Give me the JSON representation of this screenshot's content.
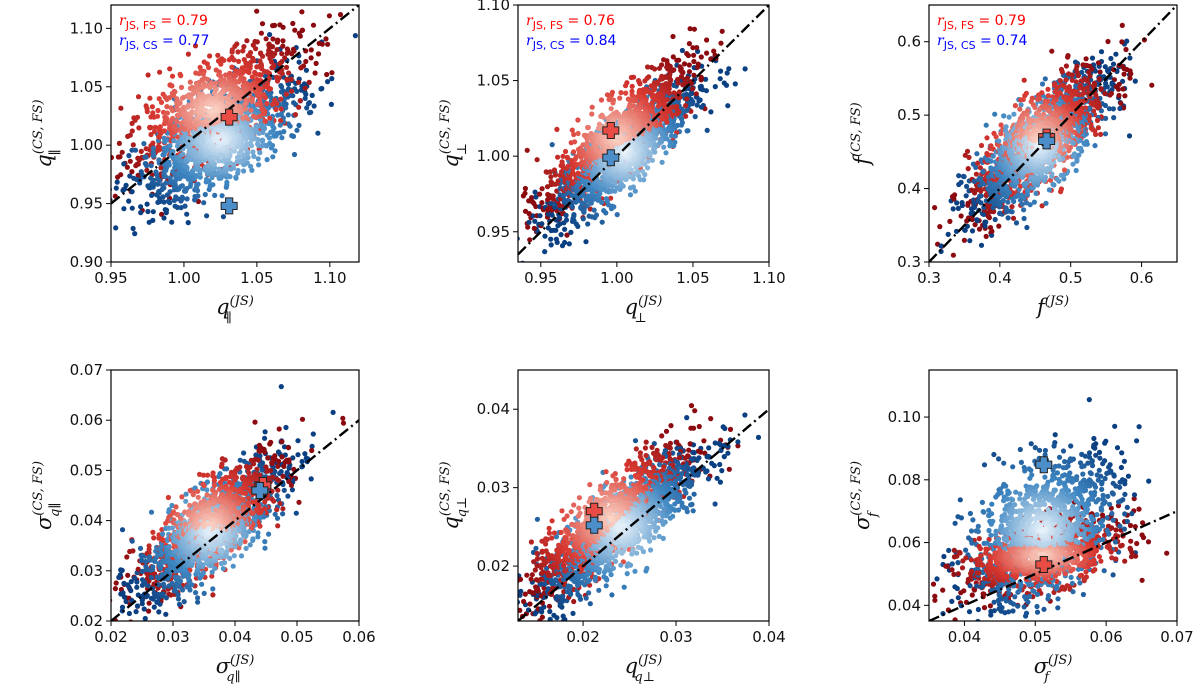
{
  "colors": {
    "fs_dark": "#8b0a0f",
    "fs_mid": "#d93a32",
    "fs_light": "#fbd5c7",
    "cs_dark": "#0a3f82",
    "cs_mid": "#3f87c2",
    "cs_light": "#e9f3fb",
    "fs_marker": "#e84c45",
    "cs_marker": "#4c8ec9",
    "fs_text": "#ff0000",
    "cs_text": "#0000ff",
    "reference_line": "#000000"
  },
  "chart_data": [
    {
      "id": "q-par",
      "type": "scatter",
      "xlim": [
        0.95,
        1.12
      ],
      "ylim": [
        0.9,
        1.12
      ],
      "xticks": [
        0.95,
        1.0,
        1.05,
        1.1
      ],
      "yticks": [
        0.9,
        0.95,
        1.0,
        1.05,
        1.1
      ],
      "xtick_labels": [
        "0.95",
        "1.00",
        "1.05",
        "1.10"
      ],
      "ytick_labels": [
        "0.90",
        "0.95",
        "1.00",
        "1.05",
        "1.10"
      ],
      "xlabel": {
        "main": "q",
        "sup": "(JS)",
        "sub": "∥"
      },
      "ylabel": {
        "main": "q",
        "sup": "(CS, FS)",
        "sub": "∥"
      },
      "annotations": [
        {
          "series": "FS",
          "r": "r",
          "sub": "JS, FS",
          "text": " = 0.79"
        },
        {
          "series": "CS",
          "r": "r",
          "sub": "JS, CS",
          "text": " = 0.77"
        }
      ],
      "reference_line": {
        "style": "dash-dot",
        "slope": 1,
        "intercept": 0
      },
      "cloud": {
        "cs_center": [
          1.025,
          1.005
        ],
        "cs_spread": [
          0.028,
          0.028
        ],
        "fs_center": [
          1.02,
          1.03
        ],
        "fs_spread": [
          0.03,
          0.03
        ],
        "corr": 0.7
      },
      "markers": [
        {
          "series": "FS",
          "x": 1.031,
          "y": 1.024
        },
        {
          "series": "CS",
          "x": 1.031,
          "y": 0.948
        }
      ]
    },
    {
      "id": "q-perp",
      "type": "scatter",
      "xlim": [
        0.935,
        1.1
      ],
      "ylim": [
        0.93,
        1.1
      ],
      "xticks": [
        0.95,
        1.0,
        1.05,
        1.1
      ],
      "yticks": [
        0.95,
        1.0,
        1.05,
        1.1
      ],
      "xtick_labels": [
        "0.95",
        "1.00",
        "1.05",
        "1.10"
      ],
      "ytick_labels": [
        "0.95",
        "1.00",
        "1.05",
        "1.10"
      ],
      "xlabel": {
        "main": "q",
        "sup": "(JS)",
        "sub": "⊥"
      },
      "ylabel": {
        "main": "q",
        "sup": "(CS, FS)",
        "sub": "⊥"
      },
      "annotations": [
        {
          "series": "FS",
          "r": "r",
          "sub": "JS, FS",
          "text": " = 0.76"
        },
        {
          "series": "CS",
          "r": "r",
          "sub": "JS, CS",
          "text": " = 0.84"
        }
      ],
      "reference_line": {
        "style": "dash-dot",
        "slope": 1,
        "intercept": 0
      },
      "cloud": {
        "cs_center": [
          1.005,
          1.003
        ],
        "cs_spread": [
          0.024,
          0.024
        ],
        "fs_center": [
          1.0,
          1.012
        ],
        "fs_spread": [
          0.025,
          0.025
        ],
        "corr": 0.85
      },
      "markers": [
        {
          "series": "FS",
          "x": 0.996,
          "y": 1.017
        },
        {
          "series": "CS",
          "x": 0.996,
          "y": 0.999
        }
      ]
    },
    {
      "id": "f",
      "type": "scatter",
      "xlim": [
        0.3,
        0.65
      ],
      "ylim": [
        0.3,
        0.65
      ],
      "xticks": [
        0.3,
        0.4,
        0.5,
        0.6
      ],
      "yticks": [
        0.3,
        0.4,
        0.5,
        0.6
      ],
      "xtick_labels": [
        "0.3",
        "0.4",
        "0.5",
        "0.6"
      ],
      "ytick_labels": [
        "0.3",
        "0.4",
        "0.5",
        "0.6"
      ],
      "xlabel": {
        "main": "f",
        "sup": "(JS)",
        "sub": ""
      },
      "ylabel": {
        "main": "f",
        "sup": "(CS, FS)",
        "sub": ""
      },
      "annotations": [
        {
          "series": "FS",
          "r": "r",
          "sub": "JS, FS",
          "text": " = 0.79"
        },
        {
          "series": "CS",
          "r": "r",
          "sub": "JS, CS",
          "text": " = 0.74"
        }
      ],
      "reference_line": {
        "style": "dash-dot",
        "slope": 1,
        "intercept": 0
      },
      "cloud": {
        "cs_center": [
          0.455,
          0.46
        ],
        "cs_spread": [
          0.05,
          0.05
        ],
        "fs_center": [
          0.455,
          0.465
        ],
        "fs_spread": [
          0.05,
          0.05
        ],
        "corr": 0.8
      },
      "markers": [
        {
          "series": "FS",
          "x": 0.466,
          "y": 0.47
        },
        {
          "series": "CS",
          "x": 0.466,
          "y": 0.465
        }
      ]
    },
    {
      "id": "sigma-q-par",
      "type": "scatter",
      "xlim": [
        0.02,
        0.06
      ],
      "ylim": [
        0.02,
        0.07
      ],
      "xticks": [
        0.02,
        0.03,
        0.04,
        0.05,
        0.06
      ],
      "yticks": [
        0.02,
        0.03,
        0.04,
        0.05,
        0.06,
        0.07
      ],
      "xtick_labels": [
        "0.02",
        "0.03",
        "0.04",
        "0.05",
        "0.06"
      ],
      "ytick_labels": [
        "0.02",
        "0.03",
        "0.04",
        "0.05",
        "0.06",
        "0.07"
      ],
      "xlabel": {
        "main": "σ",
        "sup": "(JS)",
        "sub": "q∥"
      },
      "ylabel": {
        "main": "σ",
        "sup": "(CS, FS)",
        "sub": "q∥"
      },
      "annotations": [],
      "reference_line": {
        "style": "dash-dot",
        "slope": 1,
        "intercept": 0
      },
      "cloud": {
        "cs_center": [
          0.036,
          0.038
        ],
        "cs_spread": [
          0.006,
          0.007
        ],
        "fs_center": [
          0.036,
          0.039
        ],
        "fs_spread": [
          0.006,
          0.007
        ],
        "corr": 0.8
      },
      "markers": [
        {
          "series": "FS",
          "x": 0.0445,
          "y": 0.047
        },
        {
          "series": "CS",
          "x": 0.044,
          "y": 0.046
        }
      ]
    },
    {
      "id": "q-q-perp",
      "type": "scatter",
      "xlim": [
        0.013,
        0.04
      ],
      "ylim": [
        0.013,
        0.045
      ],
      "xticks": [
        0.02,
        0.03,
        0.04
      ],
      "yticks": [
        0.02,
        0.03,
        0.04
      ],
      "xtick_labels": [
        "0.02",
        "0.03",
        "0.04"
      ],
      "ytick_labels": [
        "0.02",
        "0.03",
        "0.04"
      ],
      "xlabel": {
        "main": "q",
        "sup": "(JS)",
        "sub": "q⊥"
      },
      "ylabel": {
        "main": "q",
        "sup": "(CS, FS)",
        "sub": "q⊥"
      },
      "annotations": [],
      "reference_line": {
        "style": "dash-dot",
        "slope": 1,
        "intercept": 0
      },
      "cloud": {
        "cs_center": [
          0.024,
          0.025
        ],
        "cs_spread": [
          0.0045,
          0.005
        ],
        "fs_center": [
          0.023,
          0.026
        ],
        "fs_spread": [
          0.0045,
          0.005
        ],
        "corr": 0.85
      },
      "markers": [
        {
          "series": "FS",
          "x": 0.0212,
          "y": 0.027
        },
        {
          "series": "CS",
          "x": 0.0212,
          "y": 0.0252
        }
      ]
    },
    {
      "id": "sigma-f",
      "type": "scatter",
      "xlim": [
        0.035,
        0.07
      ],
      "ylim": [
        0.035,
        0.115
      ],
      "xticks": [
        0.04,
        0.05,
        0.06,
        0.07
      ],
      "yticks": [
        0.04,
        0.06,
        0.08,
        0.1
      ],
      "xtick_labels": [
        "0.04",
        "0.05",
        "0.06",
        "0.07"
      ],
      "ytick_labels": [
        "0.04",
        "0.06",
        "0.08",
        "0.10"
      ],
      "xlabel": {
        "main": "σ",
        "sup": "(JS)",
        "sub": "f"
      },
      "ylabel": {
        "main": "σ",
        "sup": "(CS, FS)",
        "sub": "f"
      },
      "annotations": [],
      "reference_line": {
        "style": "dash-dot",
        "slope": 1,
        "intercept": 0
      },
      "cloud": {
        "cs_center": [
          0.051,
          0.064
        ],
        "cs_spread": [
          0.0055,
          0.012
        ],
        "fs_center": [
          0.051,
          0.056
        ],
        "fs_spread": [
          0.0055,
          0.006
        ],
        "corr": 0.5
      },
      "markers": [
        {
          "series": "FS",
          "x": 0.0512,
          "y": 0.053
        },
        {
          "series": "CS",
          "x": 0.0512,
          "y": 0.0848
        }
      ]
    }
  ]
}
